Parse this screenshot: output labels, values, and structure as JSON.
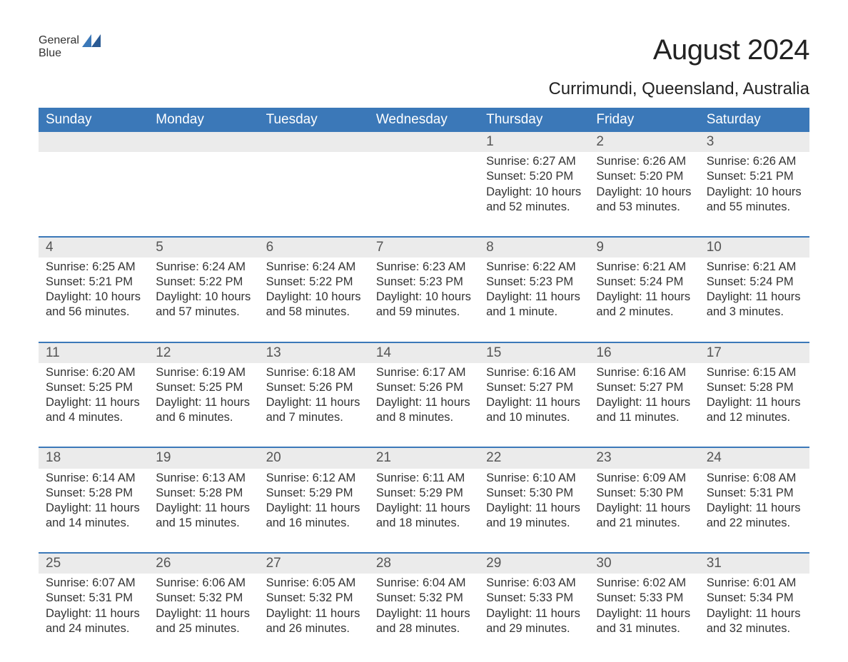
{
  "logo": {
    "text_general": "General",
    "text_blue": "Blue",
    "general_color": "#333333",
    "blue_color": "#3B78B8"
  },
  "title": "August 2024",
  "location": "Currimundi, Queensland, Australia",
  "colors": {
    "header_bg": "#3B78B8",
    "header_text": "#ffffff",
    "daynum_bg": "#ebebeb",
    "row_border": "#3B78B8",
    "body_text": "#333333",
    "page_bg": "#ffffff"
  },
  "typography": {
    "title_size_pt": 30,
    "subtitle_size_pt": 18,
    "header_size_pt": 14,
    "cell_size_pt": 12.5,
    "font_family": "Arial"
  },
  "weekdays": [
    "Sunday",
    "Monday",
    "Tuesday",
    "Wednesday",
    "Thursday",
    "Friday",
    "Saturday"
  ],
  "weeks": [
    [
      null,
      null,
      null,
      null,
      {
        "day": "1",
        "sunrise": "Sunrise: 6:27 AM",
        "sunset": "Sunset: 5:20 PM",
        "daylight1": "Daylight: 10 hours",
        "daylight2": "and 52 minutes."
      },
      {
        "day": "2",
        "sunrise": "Sunrise: 6:26 AM",
        "sunset": "Sunset: 5:20 PM",
        "daylight1": "Daylight: 10 hours",
        "daylight2": "and 53 minutes."
      },
      {
        "day": "3",
        "sunrise": "Sunrise: 6:26 AM",
        "sunset": "Sunset: 5:21 PM",
        "daylight1": "Daylight: 10 hours",
        "daylight2": "and 55 minutes."
      }
    ],
    [
      {
        "day": "4",
        "sunrise": "Sunrise: 6:25 AM",
        "sunset": "Sunset: 5:21 PM",
        "daylight1": "Daylight: 10 hours",
        "daylight2": "and 56 minutes."
      },
      {
        "day": "5",
        "sunrise": "Sunrise: 6:24 AM",
        "sunset": "Sunset: 5:22 PM",
        "daylight1": "Daylight: 10 hours",
        "daylight2": "and 57 minutes."
      },
      {
        "day": "6",
        "sunrise": "Sunrise: 6:24 AM",
        "sunset": "Sunset: 5:22 PM",
        "daylight1": "Daylight: 10 hours",
        "daylight2": "and 58 minutes."
      },
      {
        "day": "7",
        "sunrise": "Sunrise: 6:23 AM",
        "sunset": "Sunset: 5:23 PM",
        "daylight1": "Daylight: 10 hours",
        "daylight2": "and 59 minutes."
      },
      {
        "day": "8",
        "sunrise": "Sunrise: 6:22 AM",
        "sunset": "Sunset: 5:23 PM",
        "daylight1": "Daylight: 11 hours",
        "daylight2": "and 1 minute."
      },
      {
        "day": "9",
        "sunrise": "Sunrise: 6:21 AM",
        "sunset": "Sunset: 5:24 PM",
        "daylight1": "Daylight: 11 hours",
        "daylight2": "and 2 minutes."
      },
      {
        "day": "10",
        "sunrise": "Sunrise: 6:21 AM",
        "sunset": "Sunset: 5:24 PM",
        "daylight1": "Daylight: 11 hours",
        "daylight2": "and 3 minutes."
      }
    ],
    [
      {
        "day": "11",
        "sunrise": "Sunrise: 6:20 AM",
        "sunset": "Sunset: 5:25 PM",
        "daylight1": "Daylight: 11 hours",
        "daylight2": "and 4 minutes."
      },
      {
        "day": "12",
        "sunrise": "Sunrise: 6:19 AM",
        "sunset": "Sunset: 5:25 PM",
        "daylight1": "Daylight: 11 hours",
        "daylight2": "and 6 minutes."
      },
      {
        "day": "13",
        "sunrise": "Sunrise: 6:18 AM",
        "sunset": "Sunset: 5:26 PM",
        "daylight1": "Daylight: 11 hours",
        "daylight2": "and 7 minutes."
      },
      {
        "day": "14",
        "sunrise": "Sunrise: 6:17 AM",
        "sunset": "Sunset: 5:26 PM",
        "daylight1": "Daylight: 11 hours",
        "daylight2": "and 8 minutes."
      },
      {
        "day": "15",
        "sunrise": "Sunrise: 6:16 AM",
        "sunset": "Sunset: 5:27 PM",
        "daylight1": "Daylight: 11 hours",
        "daylight2": "and 10 minutes."
      },
      {
        "day": "16",
        "sunrise": "Sunrise: 6:16 AM",
        "sunset": "Sunset: 5:27 PM",
        "daylight1": "Daylight: 11 hours",
        "daylight2": "and 11 minutes."
      },
      {
        "day": "17",
        "sunrise": "Sunrise: 6:15 AM",
        "sunset": "Sunset: 5:28 PM",
        "daylight1": "Daylight: 11 hours",
        "daylight2": "and 12 minutes."
      }
    ],
    [
      {
        "day": "18",
        "sunrise": "Sunrise: 6:14 AM",
        "sunset": "Sunset: 5:28 PM",
        "daylight1": "Daylight: 11 hours",
        "daylight2": "and 14 minutes."
      },
      {
        "day": "19",
        "sunrise": "Sunrise: 6:13 AM",
        "sunset": "Sunset: 5:28 PM",
        "daylight1": "Daylight: 11 hours",
        "daylight2": "and 15 minutes."
      },
      {
        "day": "20",
        "sunrise": "Sunrise: 6:12 AM",
        "sunset": "Sunset: 5:29 PM",
        "daylight1": "Daylight: 11 hours",
        "daylight2": "and 16 minutes."
      },
      {
        "day": "21",
        "sunrise": "Sunrise: 6:11 AM",
        "sunset": "Sunset: 5:29 PM",
        "daylight1": "Daylight: 11 hours",
        "daylight2": "and 18 minutes."
      },
      {
        "day": "22",
        "sunrise": "Sunrise: 6:10 AM",
        "sunset": "Sunset: 5:30 PM",
        "daylight1": "Daylight: 11 hours",
        "daylight2": "and 19 minutes."
      },
      {
        "day": "23",
        "sunrise": "Sunrise: 6:09 AM",
        "sunset": "Sunset: 5:30 PM",
        "daylight1": "Daylight: 11 hours",
        "daylight2": "and 21 minutes."
      },
      {
        "day": "24",
        "sunrise": "Sunrise: 6:08 AM",
        "sunset": "Sunset: 5:31 PM",
        "daylight1": "Daylight: 11 hours",
        "daylight2": "and 22 minutes."
      }
    ],
    [
      {
        "day": "25",
        "sunrise": "Sunrise: 6:07 AM",
        "sunset": "Sunset: 5:31 PM",
        "daylight1": "Daylight: 11 hours",
        "daylight2": "and 24 minutes."
      },
      {
        "day": "26",
        "sunrise": "Sunrise: 6:06 AM",
        "sunset": "Sunset: 5:32 PM",
        "daylight1": "Daylight: 11 hours",
        "daylight2": "and 25 minutes."
      },
      {
        "day": "27",
        "sunrise": "Sunrise: 6:05 AM",
        "sunset": "Sunset: 5:32 PM",
        "daylight1": "Daylight: 11 hours",
        "daylight2": "and 26 minutes."
      },
      {
        "day": "28",
        "sunrise": "Sunrise: 6:04 AM",
        "sunset": "Sunset: 5:32 PM",
        "daylight1": "Daylight: 11 hours",
        "daylight2": "and 28 minutes."
      },
      {
        "day": "29",
        "sunrise": "Sunrise: 6:03 AM",
        "sunset": "Sunset: 5:33 PM",
        "daylight1": "Daylight: 11 hours",
        "daylight2": "and 29 minutes."
      },
      {
        "day": "30",
        "sunrise": "Sunrise: 6:02 AM",
        "sunset": "Sunset: 5:33 PM",
        "daylight1": "Daylight: 11 hours",
        "daylight2": "and 31 minutes."
      },
      {
        "day": "31",
        "sunrise": "Sunrise: 6:01 AM",
        "sunset": "Sunset: 5:34 PM",
        "daylight1": "Daylight: 11 hours",
        "daylight2": "and 32 minutes."
      }
    ]
  ]
}
